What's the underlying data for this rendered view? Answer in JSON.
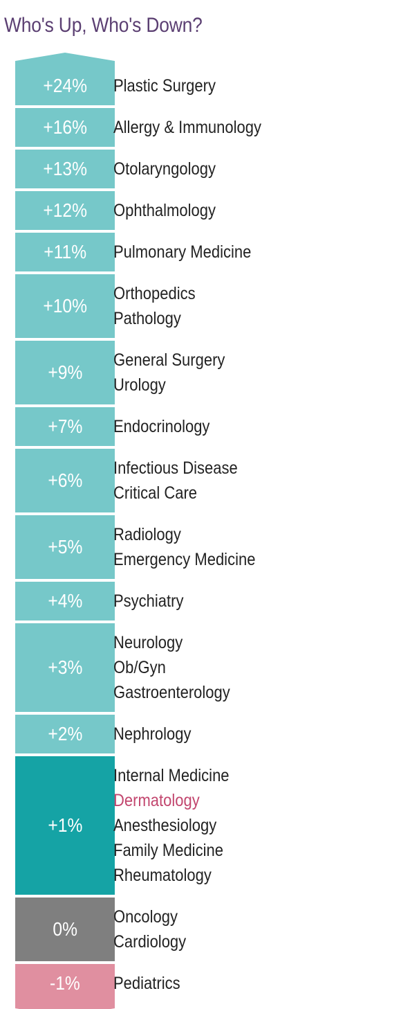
{
  "title": "Who's Up, Who's Down?",
  "colors": {
    "up": "#76c8c9",
    "highlight": "#15a3a5",
    "neutral": "#7f7f7f",
    "down": "#e08fa0",
    "title": "#5b3f72",
    "highlight_label": "#c2466e"
  },
  "chart_data": {
    "type": "table",
    "rows": [
      {
        "change": "+24%",
        "value": 24,
        "specialties": [
          "Plastic Surgery"
        ],
        "color": "up"
      },
      {
        "change": "+16%",
        "value": 16,
        "specialties": [
          "Allergy & Immunology"
        ],
        "color": "up"
      },
      {
        "change": "+13%",
        "value": 13,
        "specialties": [
          "Otolaryngology"
        ],
        "color": "up"
      },
      {
        "change": "+12%",
        "value": 12,
        "specialties": [
          "Ophthalmology"
        ],
        "color": "up"
      },
      {
        "change": "+11%",
        "value": 11,
        "specialties": [
          "Pulmonary Medicine"
        ],
        "color": "up"
      },
      {
        "change": "+10%",
        "value": 10,
        "specialties": [
          "Orthopedics",
          "Pathology"
        ],
        "color": "up"
      },
      {
        "change": "+9%",
        "value": 9,
        "specialties": [
          "General Surgery",
          "Urology"
        ],
        "color": "up"
      },
      {
        "change": "+7%",
        "value": 7,
        "specialties": [
          "Endocrinology"
        ],
        "color": "up"
      },
      {
        "change": "+6%",
        "value": 6,
        "specialties": [
          "Infectious Disease",
          "Critical Care"
        ],
        "color": "up"
      },
      {
        "change": "+5%",
        "value": 5,
        "specialties": [
          "Radiology",
          "Emergency Medicine"
        ],
        "color": "up"
      },
      {
        "change": "+4%",
        "value": 4,
        "specialties": [
          "Psychiatry"
        ],
        "color": "up"
      },
      {
        "change": "+3%",
        "value": 3,
        "specialties": [
          "Neurology",
          "Ob/Gyn",
          "Gastroenterology"
        ],
        "color": "up"
      },
      {
        "change": "+2%",
        "value": 2,
        "specialties": [
          "Nephrology"
        ],
        "color": "up"
      },
      {
        "change": "+1%",
        "value": 1,
        "specialties": [
          "Internal Medicine",
          "Dermatology",
          "Anesthesiology",
          "Family Medicine",
          "Rheumatology"
        ],
        "highlighted": [
          "Dermatology"
        ],
        "color": "highlight"
      },
      {
        "change": "0%",
        "value": 0,
        "specialties": [
          "Oncology",
          "Cardiology"
        ],
        "color": "neutral"
      },
      {
        "change": "-1%",
        "value": -1,
        "specialties": [
          "Pediatrics"
        ],
        "color": "down"
      }
    ]
  }
}
